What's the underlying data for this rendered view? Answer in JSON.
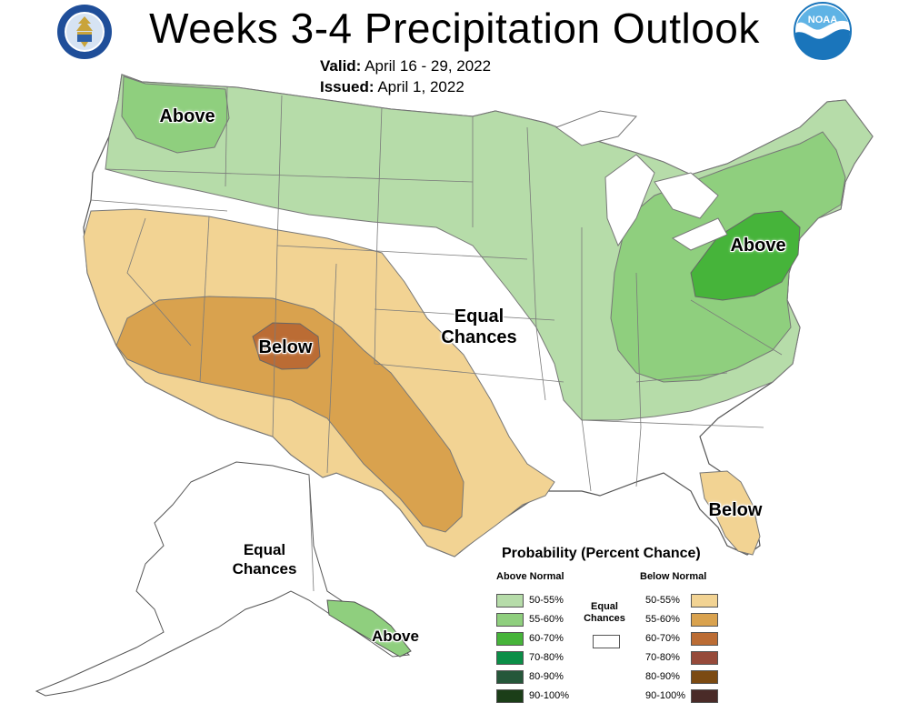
{
  "header": {
    "title": "Weeks 3-4 Precipitation Outlook",
    "valid_label": "Valid:",
    "valid_value": "April 16 - 29, 2022",
    "issued_label": "Issued:",
    "issued_value": "April 1, 2022"
  },
  "logos": {
    "left": "department-of-commerce-seal",
    "right": "noaa-logo",
    "right_text": "NOAA"
  },
  "map_labels": {
    "above_northwest": "Above",
    "above_northeast": "Above",
    "above_alaska": "Above",
    "below_southwest": "Below",
    "below_florida": "Below",
    "equal_chances_plains": "Equal Chances",
    "equal_chances_alaska": "Equal Chances"
  },
  "legend": {
    "title": "Probability (Percent Chance)",
    "above_header": "Above Normal",
    "below_header": "Below Normal",
    "equal_chances": "Equal Chances",
    "above": [
      {
        "label": "50-55%",
        "color": "#b6dca9"
      },
      {
        "label": "55-60%",
        "color": "#8fcf7e"
      },
      {
        "label": "60-70%",
        "color": "#46b43a"
      },
      {
        "label": "70-80%",
        "color": "#0b8e47"
      },
      {
        "label": "80-90%",
        "color": "#25573a"
      },
      {
        "label": "90-100%",
        "color": "#1b3e18"
      }
    ],
    "below": [
      {
        "label": "50-55%",
        "color": "#f2d393"
      },
      {
        "label": "55-60%",
        "color": "#d9a24e"
      },
      {
        "label": "60-70%",
        "color": "#bb6c34"
      },
      {
        "label": "70-80%",
        "color": "#964a3a"
      },
      {
        "label": "80-90%",
        "color": "#7b4a12"
      },
      {
        "label": "90-100%",
        "color": "#4a2b28"
      }
    ]
  },
  "colors": {
    "above_50_55": "#b6dca9",
    "above_55_60": "#8fcf7e",
    "above_60_70": "#46b43a",
    "below_50_55": "#f2d393",
    "below_55_60": "#d9a24e",
    "below_60_70": "#bb6c34",
    "equal_chances": "#ffffff",
    "noaa_blue": "#1a75bb",
    "commerce_blue": "#1f4e99"
  }
}
